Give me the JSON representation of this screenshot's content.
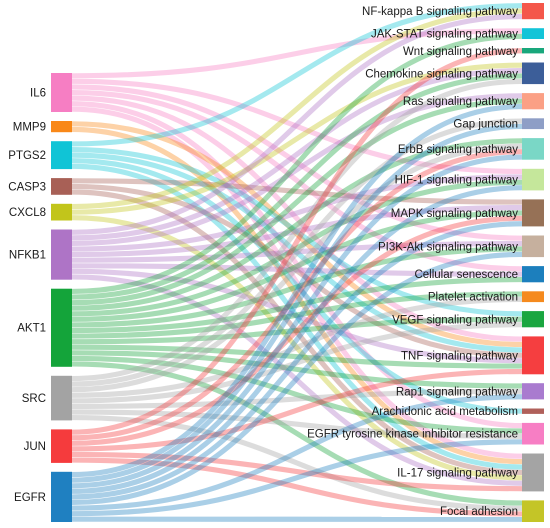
{
  "diagram": {
    "type": "sankey",
    "genes": [
      {
        "name": "IL6",
        "color": "#f67ec3"
      },
      {
        "name": "MMP9",
        "color": "#f98818"
      },
      {
        "name": "PTGS2",
        "color": "#10c4d6"
      },
      {
        "name": "CASP3",
        "color": "#a86056"
      },
      {
        "name": "CXCL8",
        "color": "#c2c51b"
      },
      {
        "name": "NFKB1",
        "color": "#ae74c6"
      },
      {
        "name": "AKT1",
        "color": "#14a43a"
      },
      {
        "name": "SRC",
        "color": "#a3a3a3"
      },
      {
        "name": "JUN",
        "color": "#f53b3d"
      },
      {
        "name": "EGFR",
        "color": "#1f80c1"
      }
    ],
    "pathways": [
      {
        "name": "NF-kappa B signaling pathway",
        "color": "#f4574a"
      },
      {
        "name": "JAK-STAT signaling pathway",
        "color": "#13c4d8"
      },
      {
        "name": "Wnt signaling pathway",
        "color": "#19a77c"
      },
      {
        "name": "Chemokine signaling pathway",
        "color": "#3c5e99"
      },
      {
        "name": "Ras signaling pathway",
        "color": "#fba085"
      },
      {
        "name": "Gap junction",
        "color": "#8e9ec6"
      },
      {
        "name": "ErbB signaling pathway",
        "color": "#7ad7c6"
      },
      {
        "name": "HIF-1 signaling pathway",
        "color": "#c5e79b"
      },
      {
        "name": "MAPK signaling pathway",
        "color": "#967156"
      },
      {
        "name": "PI3K-Akt signaling pathway",
        "color": "#c6b09e"
      },
      {
        "name": "Cellular senescence",
        "color": "#1c7fbd"
      },
      {
        "name": "Platelet activation",
        "color": "#f58a1e"
      },
      {
        "name": "VEGF signaling pathway",
        "color": "#1aa640"
      },
      {
        "name": "TNF signaling pathway",
        "color": "#f53e40"
      },
      {
        "name": "Rap1 signaling pathway",
        "color": "#a97bcf"
      },
      {
        "name": "Arachidonic acid metabolism",
        "color": "#b0605a"
      },
      {
        "name": "EGFR tyrosine kinase inhibitor resistance",
        "color": "#f77ec4"
      },
      {
        "name": "IL-17 signaling pathway",
        "color": "#a4a4a4"
      },
      {
        "name": "Focal adhesion",
        "color": "#c4c527"
      }
    ],
    "links": [
      [
        "IL6",
        "JAK-STAT signaling pathway"
      ],
      [
        "IL6",
        "HIF-1 signaling pathway"
      ],
      [
        "IL6",
        "PI3K-Akt signaling pathway"
      ],
      [
        "IL6",
        "Cellular senescence"
      ],
      [
        "IL6",
        "TNF signaling pathway"
      ],
      [
        "IL6",
        "IL-17 signaling pathway"
      ],
      [
        "IL6",
        "EGFR tyrosine kinase inhibitor resistance"
      ],
      [
        "MMP9",
        "TNF signaling pathway"
      ],
      [
        "MMP9",
        "IL-17 signaling pathway"
      ],
      [
        "PTGS2",
        "NF-kappa B signaling pathway"
      ],
      [
        "PTGS2",
        "TNF signaling pathway"
      ],
      [
        "PTGS2",
        "VEGF signaling pathway"
      ],
      [
        "PTGS2",
        "Arachidonic acid metabolism"
      ],
      [
        "PTGS2",
        "IL-17 signaling pathway"
      ],
      [
        "CASP3",
        "MAPK signaling pathway"
      ],
      [
        "CASP3",
        "TNF signaling pathway"
      ],
      [
        "CASP3",
        "IL-17 signaling pathway"
      ],
      [
        "CXCL8",
        "NF-kappa B signaling pathway"
      ],
      [
        "CXCL8",
        "Chemokine signaling pathway"
      ],
      [
        "CXCL8",
        "IL-17 signaling pathway"
      ],
      [
        "NFKB1",
        "NF-kappa B signaling pathway"
      ],
      [
        "NFKB1",
        "Chemokine signaling pathway"
      ],
      [
        "NFKB1",
        "Ras signaling pathway"
      ],
      [
        "NFKB1",
        "HIF-1 signaling pathway"
      ],
      [
        "NFKB1",
        "MAPK signaling pathway"
      ],
      [
        "NFKB1",
        "PI3K-Akt signaling pathway"
      ],
      [
        "NFKB1",
        "Cellular senescence"
      ],
      [
        "NFKB1",
        "TNF signaling pathway"
      ],
      [
        "NFKB1",
        "IL-17 signaling pathway"
      ],
      [
        "AKT1",
        "JAK-STAT signaling pathway"
      ],
      [
        "AKT1",
        "Chemokine signaling pathway"
      ],
      [
        "AKT1",
        "Ras signaling pathway"
      ],
      [
        "AKT1",
        "ErbB signaling pathway"
      ],
      [
        "AKT1",
        "HIF-1 signaling pathway"
      ],
      [
        "AKT1",
        "MAPK signaling pathway"
      ],
      [
        "AKT1",
        "PI3K-Akt signaling pathway"
      ],
      [
        "AKT1",
        "Cellular senescence"
      ],
      [
        "AKT1",
        "Platelet activation"
      ],
      [
        "AKT1",
        "VEGF signaling pathway"
      ],
      [
        "AKT1",
        "TNF signaling pathway"
      ],
      [
        "AKT1",
        "Rap1 signaling pathway"
      ],
      [
        "AKT1",
        "EGFR tyrosine kinase inhibitor resistance"
      ],
      [
        "AKT1",
        "Focal adhesion"
      ],
      [
        "SRC",
        "Chemokine signaling pathway"
      ],
      [
        "SRC",
        "Gap junction"
      ],
      [
        "SRC",
        "ErbB signaling pathway"
      ],
      [
        "SRC",
        "VEGF signaling pathway"
      ],
      [
        "SRC",
        "Platelet activation"
      ],
      [
        "SRC",
        "Rap1 signaling pathway"
      ],
      [
        "SRC",
        "EGFR tyrosine kinase inhibitor resistance"
      ],
      [
        "SRC",
        "Focal adhesion"
      ],
      [
        "JUN",
        "Wnt signaling pathway"
      ],
      [
        "JUN",
        "ErbB signaling pathway"
      ],
      [
        "JUN",
        "MAPK signaling pathway"
      ],
      [
        "JUN",
        "TNF signaling pathway"
      ],
      [
        "JUN",
        "IL-17 signaling pathway"
      ],
      [
        "JUN",
        "Focal adhesion"
      ],
      [
        "EGFR",
        "Ras signaling pathway"
      ],
      [
        "EGFR",
        "Gap junction"
      ],
      [
        "EGFR",
        "ErbB signaling pathway"
      ],
      [
        "EGFR",
        "HIF-1 signaling pathway"
      ],
      [
        "EGFR",
        "MAPK signaling pathway"
      ],
      [
        "EGFR",
        "PI3K-Akt signaling pathway"
      ],
      [
        "EGFR",
        "Rap1 signaling pathway"
      ],
      [
        "EGFR",
        "EGFR tyrosine kinase inhibitor resistance"
      ],
      [
        "EGFR",
        "Focal adhesion"
      ]
    ]
  }
}
